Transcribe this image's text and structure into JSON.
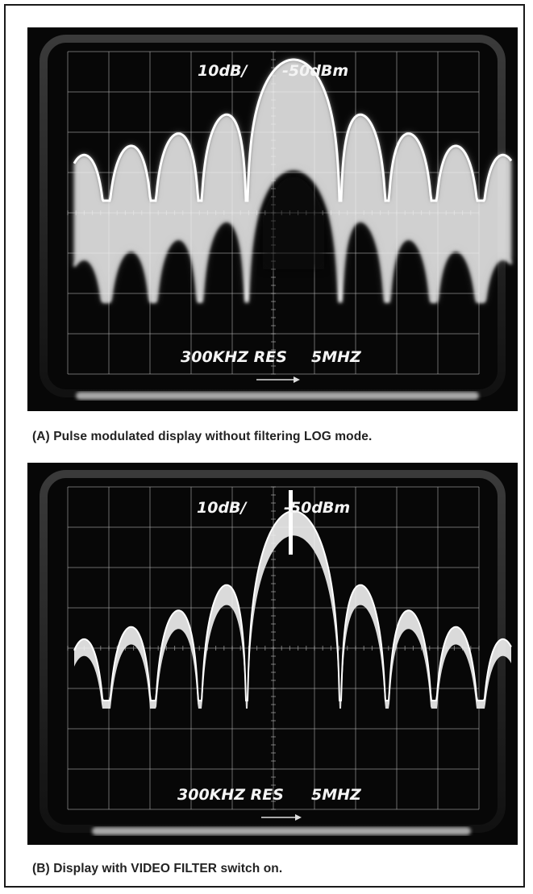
{
  "panel_a": {
    "scale_label": "10dB/",
    "ref_label": "-50dBm",
    "res_label": "300KHZ RES",
    "span_label": "5MHZ",
    "caption": "(A) Pulse modulated display without filtering LOG mode."
  },
  "panel_b": {
    "scale_label": "10dB/",
    "ref_label": "-50dBm",
    "res_label": "300KHZ RES",
    "span_label": "5MHZ",
    "caption": "(B) Display with VIDEO FILTER switch on."
  },
  "colors": {
    "screen": "#050505",
    "trace": "#f2f2f2",
    "graticule": "#bdbdbd"
  }
}
